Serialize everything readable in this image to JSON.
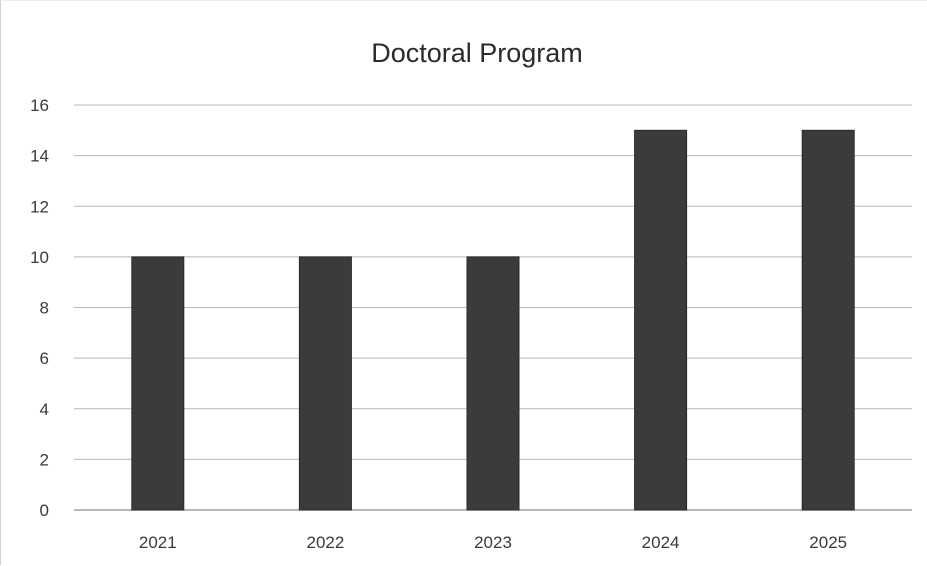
{
  "chart_data": {
    "type": "bar",
    "title": "Doctoral Program",
    "categories": [
      "2021",
      "2022",
      "2023",
      "2024",
      "2025"
    ],
    "values": [
      10,
      10,
      10,
      15,
      15
    ],
    "xlabel": "",
    "ylabel": "",
    "ylim": [
      0,
      16
    ],
    "yticks": [
      "0",
      "2",
      "4",
      "6",
      "8",
      "10",
      "12",
      "14",
      "16"
    ],
    "grid": true,
    "legend": "none",
    "colors": {
      "bar": "#3b3b3b",
      "grid": "#b8b8b8",
      "text": "#2b2b2b"
    }
  }
}
